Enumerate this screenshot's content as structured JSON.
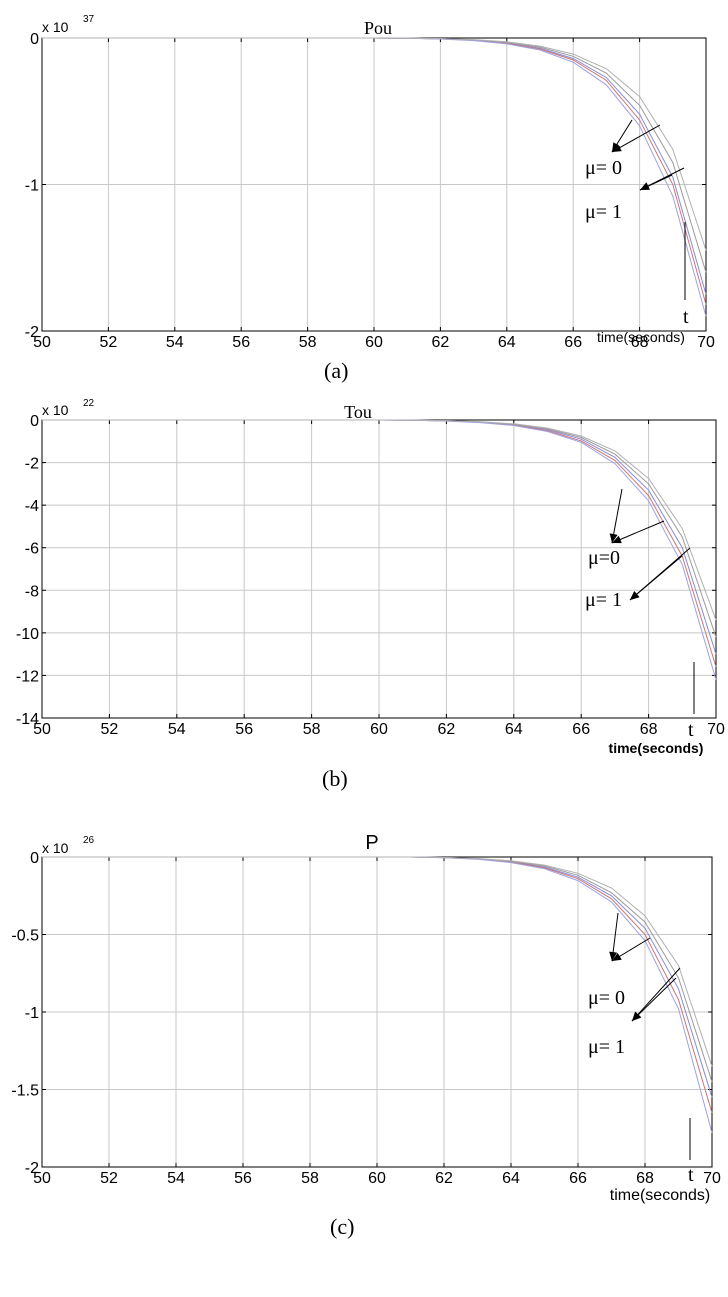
{
  "charts": [
    {
      "caption": "(a)",
      "title": "Pou",
      "exponent_base": "x 10",
      "exponent_power": "37",
      "xlabel": "time(seconds)",
      "t_label": "t",
      "mu_labels": [
        "μ= 0",
        "μ= 1"
      ]
    },
    {
      "caption": "(b)",
      "title": "Tou",
      "exponent_base": "x 10",
      "exponent_power": "22",
      "xlabel": "time(seconds)",
      "t_label": "t",
      "mu_labels": [
        "μ=0",
        "μ= 1"
      ]
    },
    {
      "caption": "(c)",
      "title": "P",
      "exponent_base": "x 10",
      "exponent_power": "26",
      "xlabel": "time(seconds)",
      "t_label": "t",
      "mu_labels": [
        "μ= 0",
        "μ= 1"
      ]
    }
  ],
  "chart_data": [
    {
      "type": "line",
      "title": "Pou",
      "xlabel": "time(seconds)",
      "ylabel": "",
      "y_multiplier": "x 10^37",
      "xlim": [
        50,
        70
      ],
      "ylim": [
        -2,
        0
      ],
      "xticks": [
        50,
        52,
        54,
        56,
        58,
        60,
        62,
        64,
        66,
        68,
        70
      ],
      "yticks": [
        0,
        -1,
        -2
      ],
      "xtick_labels": [
        "50",
        "52",
        "54",
        "56",
        "58",
        "60",
        "62",
        "64",
        "66",
        "68",
        "70"
      ],
      "ytick_labels": [
        "0",
        "-1",
        "-2"
      ],
      "grid": true,
      "series": [
        {
          "color": "#8a8ad8",
          "x": [
            50,
            60,
            61,
            62,
            63,
            64,
            65,
            66,
            67,
            68,
            69,
            70
          ],
          "values": [
            0,
            0,
            -0.002,
            -0.006,
            -0.015,
            -0.035,
            -0.07,
            -0.14,
            -0.27,
            -0.52,
            -0.95,
            -1.75
          ]
        },
        {
          "color": "#c87878",
          "x": [
            50,
            60,
            61,
            62,
            63,
            64,
            65,
            66,
            67,
            68,
            69,
            70
          ],
          "values": [
            0,
            0,
            -0.002,
            -0.006,
            -0.016,
            -0.037,
            -0.075,
            -0.15,
            -0.29,
            -0.56,
            -1.0,
            -1.82
          ]
        },
        {
          "color": "#9a9a9a",
          "x": [
            50,
            60,
            61,
            62,
            63,
            64,
            65,
            66,
            67,
            68,
            69,
            70
          ],
          "values": [
            0,
            0,
            -0.002,
            -0.005,
            -0.013,
            -0.03,
            -0.062,
            -0.125,
            -0.24,
            -0.46,
            -0.85,
            -1.6
          ]
        },
        {
          "color": "#a0a0e0",
          "x": [
            50,
            60,
            61,
            62,
            63,
            64,
            65,
            66,
            67,
            68,
            69,
            70
          ],
          "values": [
            0,
            0,
            -0.002,
            -0.007,
            -0.018,
            -0.04,
            -0.082,
            -0.165,
            -0.32,
            -0.6,
            -1.08,
            -1.9
          ]
        },
        {
          "color": "#b0b0b0",
          "x": [
            50,
            60,
            61,
            62,
            63,
            64,
            65,
            66,
            67,
            68,
            69,
            70
          ],
          "values": [
            0,
            0,
            -0.001,
            -0.004,
            -0.011,
            -0.026,
            -0.055,
            -0.11,
            -0.21,
            -0.4,
            -0.76,
            -1.45
          ]
        }
      ]
    },
    {
      "type": "line",
      "title": "Tou",
      "xlabel": "time(seconds)",
      "ylabel": "",
      "y_multiplier": "x 10^22",
      "xlim": [
        50,
        70
      ],
      "ylim": [
        -14,
        0
      ],
      "xticks": [
        50,
        52,
        54,
        56,
        58,
        60,
        62,
        64,
        66,
        68,
        70
      ],
      "yticks": [
        0,
        -2,
        -4,
        -6,
        -8,
        -10,
        -12,
        -14
      ],
      "xtick_labels": [
        "50",
        "52",
        "54",
        "56",
        "58",
        "60",
        "62",
        "64",
        "66",
        "68",
        "70"
      ],
      "ytick_labels": [
        "0",
        "-2",
        "-4",
        "-6",
        "-8",
        "-10",
        "-12",
        "-14"
      ],
      "grid": true,
      "series": [
        {
          "color": "#8a8ad8",
          "x": [
            50,
            60,
            61,
            62,
            63,
            64,
            65,
            66,
            67,
            68,
            69,
            70
          ],
          "values": [
            0,
            0,
            -0.01,
            -0.04,
            -0.1,
            -0.22,
            -0.45,
            -0.9,
            -1.75,
            -3.3,
            -6.0,
            -11.0
          ]
        },
        {
          "color": "#c87878",
          "x": [
            50,
            60,
            61,
            62,
            63,
            64,
            65,
            66,
            67,
            68,
            69,
            70
          ],
          "values": [
            0,
            0,
            -0.01,
            -0.04,
            -0.11,
            -0.24,
            -0.5,
            -0.98,
            -1.9,
            -3.55,
            -6.4,
            -11.6
          ]
        },
        {
          "color": "#9a9a9a",
          "x": [
            50,
            60,
            61,
            62,
            63,
            64,
            65,
            66,
            67,
            68,
            69,
            70
          ],
          "values": [
            0,
            0,
            -0.01,
            -0.03,
            -0.09,
            -0.2,
            -0.42,
            -0.82,
            -1.6,
            -3.0,
            -5.5,
            -10.2
          ]
        },
        {
          "color": "#a0a0e0",
          "x": [
            50,
            60,
            61,
            62,
            63,
            64,
            65,
            66,
            67,
            68,
            69,
            70
          ],
          "values": [
            0,
            0,
            -0.01,
            -0.05,
            -0.12,
            -0.26,
            -0.54,
            -1.05,
            -2.05,
            -3.8,
            -6.8,
            -12.2
          ]
        },
        {
          "color": "#b0b0b0",
          "x": [
            50,
            60,
            61,
            62,
            63,
            64,
            65,
            66,
            67,
            68,
            69,
            70
          ],
          "values": [
            0,
            0,
            -0.01,
            -0.03,
            -0.08,
            -0.18,
            -0.38,
            -0.75,
            -1.45,
            -2.75,
            -5.1,
            -9.4
          ]
        }
      ]
    },
    {
      "type": "line",
      "title": "P",
      "xlabel": "time(seconds)",
      "ylabel": "",
      "y_multiplier": "x 10^26",
      "xlim": [
        50,
        70
      ],
      "ylim": [
        -2,
        0
      ],
      "xticks": [
        50,
        52,
        54,
        56,
        58,
        60,
        62,
        64,
        66,
        68,
        70
      ],
      "yticks": [
        0,
        -0.5,
        -1,
        -1.5,
        -2
      ],
      "xtick_labels": [
        "50",
        "52",
        "54",
        "56",
        "58",
        "60",
        "62",
        "64",
        "66",
        "68",
        "70"
      ],
      "ytick_labels": [
        "0",
        "-0.5",
        "-1",
        "-1.5",
        "-2"
      ],
      "grid": true,
      "series": [
        {
          "color": "#8a8ad8",
          "x": [
            50,
            61,
            62,
            63,
            64,
            65,
            66,
            67,
            68,
            69,
            70
          ],
          "values": [
            0,
            0,
            -0.004,
            -0.012,
            -0.03,
            -0.065,
            -0.13,
            -0.25,
            -0.46,
            -0.85,
            -1.55
          ]
        },
        {
          "color": "#c87878",
          "x": [
            50,
            61,
            62,
            63,
            64,
            65,
            66,
            67,
            68,
            69,
            70
          ],
          "values": [
            0,
            0,
            -0.004,
            -0.013,
            -0.032,
            -0.07,
            -0.14,
            -0.27,
            -0.5,
            -0.92,
            -1.65
          ]
        },
        {
          "color": "#9a9a9a",
          "x": [
            50,
            61,
            62,
            63,
            64,
            65,
            66,
            67,
            68,
            69,
            70
          ],
          "values": [
            0,
            0,
            -0.003,
            -0.011,
            -0.027,
            -0.058,
            -0.118,
            -0.23,
            -0.42,
            -0.78,
            -1.45
          ]
        },
        {
          "color": "#a0a0e0",
          "x": [
            50,
            61,
            62,
            63,
            64,
            65,
            66,
            67,
            68,
            69,
            70
          ],
          "values": [
            0,
            0,
            -0.005,
            -0.015,
            -0.036,
            -0.076,
            -0.152,
            -0.29,
            -0.54,
            -0.98,
            -1.78
          ]
        },
        {
          "color": "#b0b0b0",
          "x": [
            50,
            61,
            62,
            63,
            64,
            65,
            66,
            67,
            68,
            69,
            70
          ],
          "values": [
            0,
            0,
            -0.003,
            -0.01,
            -0.024,
            -0.052,
            -0.105,
            -0.2,
            -0.38,
            -0.7,
            -1.35
          ]
        }
      ]
    }
  ]
}
